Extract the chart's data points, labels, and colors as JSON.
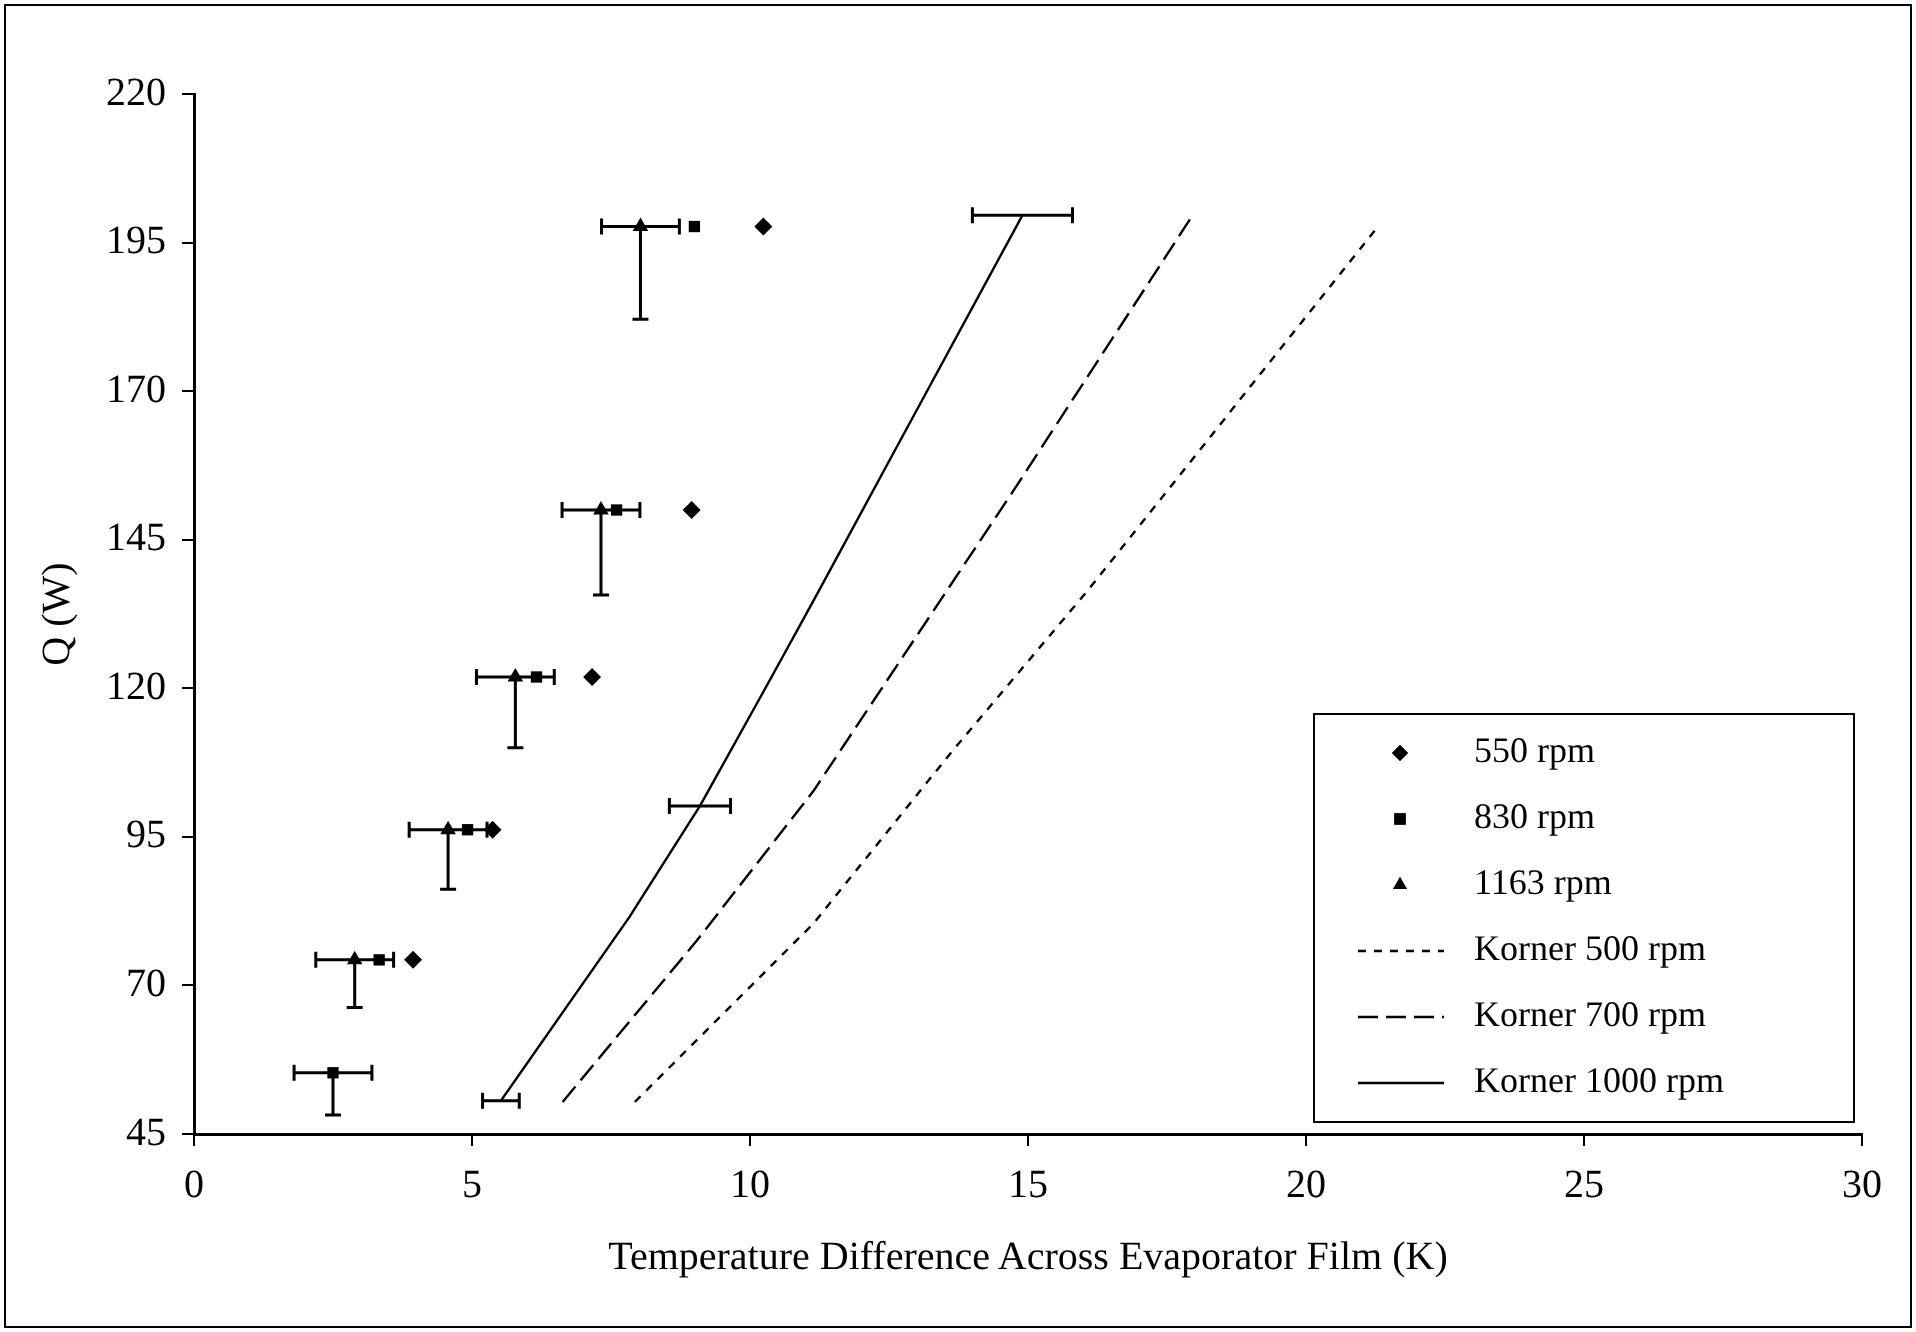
{
  "chart_data": {
    "type": "scatter",
    "xlabel": "Temperature Difference Across Evaporator Film (K)",
    "ylabel": "Q (W)",
    "xlim": [
      0,
      30
    ],
    "xticks": [
      0,
      5,
      10,
      15,
      20,
      25,
      30
    ],
    "ylim": [
      45,
      220
    ],
    "yticks": [
      45,
      70,
      95,
      120,
      145,
      170,
      195,
      220
    ],
    "grid": false,
    "legend": "bottom right",
    "series": [
      {
        "name": "550 rpm",
        "type": "scatter",
        "marker": "diamond",
        "color": "#000000",
        "x": [
          10.24,
          8.95,
          7.16,
          5.37,
          3.94
        ],
        "values": [
          197.7,
          150,
          121.9,
          96.2,
          74.3
        ]
      },
      {
        "name": "830 rpm",
        "type": "scatter",
        "marker": "square",
        "color": "#000000",
        "x": [
          9.0,
          7.6,
          6.16,
          4.92,
          3.33,
          2.5
        ],
        "values": [
          197.7,
          150,
          121.9,
          96.2,
          74.3,
          55.3
        ],
        "errors": [
          null,
          null,
          null,
          null,
          null,
          [
            48.2,
            55.3
          ]
        ],
        "xerrors": [
          null,
          null,
          null,
          null,
          null,
          0.7
        ]
      },
      {
        "name": "1163 rpm",
        "type": "scatter",
        "marker": "triangle",
        "color": "#000000",
        "x": [
          8.03,
          7.32,
          5.78,
          4.57,
          2.89
        ],
        "values": [
          197.7,
          150,
          121.9,
          96.2,
          74.3
        ],
        "errors": [
          [
            182.1,
            197.7
          ],
          [
            135.7,
            150
          ],
          [
            110,
            121.9
          ],
          [
            86.2,
            96.2
          ],
          [
            66.3,
            74.3
          ]
        ],
        "xerrors": [
          0.7,
          0.7,
          0.7,
          0.7,
          0.7
        ]
      },
      {
        "name": "Korner 500 rpm",
        "type": "line",
        "marker": "none",
        "line_style": "dotted",
        "color": "#000000",
        "x": [
          7.93,
          11.14,
          13.6,
          16.07,
          21.32
        ],
        "values": [
          50.4,
          80.4,
          109,
          136.4,
          198
        ]
      },
      {
        "name": "Korner 700 rpm",
        "type": "line",
        "marker": "none",
        "line_style": "dashed",
        "color": "#000000",
        "x": [
          6.63,
          9.04,
          11.14,
          14.72,
          17.96
        ],
        "values": [
          50.4,
          77.5,
          102.7,
          153,
          199.6
        ]
      },
      {
        "name": "Korner 1000 rpm",
        "type": "line",
        "marker": "none",
        "line_style": "solid",
        "color": "#000000",
        "x": [
          5.52,
          7.83,
          9.1,
          10.37,
          11.14,
          12.5,
          14.9
        ],
        "values": [
          50.6,
          81.5,
          100.2,
          121.6,
          134.7,
          158.2,
          199.6
        ],
        "xerrors": [
          0.33,
          null,
          0.55,
          null,
          null,
          null,
          0.9
        ]
      }
    ]
  }
}
